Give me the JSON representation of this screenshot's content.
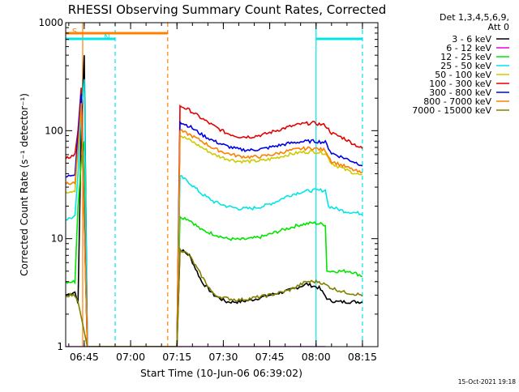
{
  "chart_data": {
    "type": "line",
    "title": "RHESSI Observing Summary Count Rates, Corrected",
    "xlabel": "Start Time (10-Jun-06 06:39:02)",
    "ylabel": "Corrected Count Rate (s⁻¹ detector⁻¹)",
    "x_ticks": [
      "06:45",
      "07:00",
      "07:15",
      "07:30",
      "07:45",
      "08:00",
      "08:15"
    ],
    "x_tick_minutes": [
      6,
      21,
      36,
      51,
      66,
      81,
      96
    ],
    "xlim_minutes": [
      0,
      101
    ],
    "y_scale": "log",
    "ylim": [
      1,
      1000
    ],
    "y_ticks": [
      {
        "label": "1",
        "value": 1
      },
      {
        "label": "10",
        "value": 10
      },
      {
        "label": "100",
        "value": 100
      },
      {
        "label": "1000",
        "value": 1000
      }
    ],
    "legend_header": [
      "Det 1,3,4,5,6,9,",
      "Att 0"
    ],
    "legend_placement": "right",
    "series": [
      {
        "name": "3 - 6 keV",
        "color": "#000000",
        "points": [
          [
            0,
            3
          ],
          [
            3,
            3.2
          ],
          [
            4,
            2.5
          ],
          [
            5,
            100
          ],
          [
            6,
            500
          ],
          [
            7,
            1
          ],
          [
            36,
            1
          ],
          [
            37,
            8
          ],
          [
            40,
            7
          ],
          [
            44,
            4
          ],
          [
            48,
            3
          ],
          [
            52,
            2.6
          ],
          [
            56,
            2.6
          ],
          [
            60,
            2.7
          ],
          [
            66,
            3
          ],
          [
            72,
            3.3
          ],
          [
            78,
            3.8
          ],
          [
            82,
            3.5
          ],
          [
            85,
            2.7
          ],
          [
            88,
            2.6
          ],
          [
            93,
            2.6
          ],
          [
            96,
            2.6
          ]
        ]
      },
      {
        "name": "6 - 12 keV",
        "color": "#e600e6",
        "points": [
          [
            0,
            1
          ],
          [
            5,
            1
          ],
          [
            82,
            1
          ],
          [
            84,
            1
          ]
        ]
      },
      {
        "name": "12 - 25 keV",
        "color": "#00e600",
        "points": [
          [
            0,
            4
          ],
          [
            3,
            4
          ],
          [
            4,
            20
          ],
          [
            5,
            50
          ],
          [
            6,
            80
          ],
          [
            7,
            1
          ],
          [
            36,
            1
          ],
          [
            37,
            16
          ],
          [
            40,
            15
          ],
          [
            44,
            12
          ],
          [
            48,
            11
          ],
          [
            52,
            10
          ],
          [
            56,
            9.8
          ],
          [
            60,
            10
          ],
          [
            64,
            10.5
          ],
          [
            68,
            11.5
          ],
          [
            72,
            12.5
          ],
          [
            76,
            13.5
          ],
          [
            80,
            14
          ],
          [
            84,
            13.5
          ],
          [
            84.5,
            5
          ],
          [
            88,
            5
          ],
          [
            92,
            5
          ],
          [
            96,
            4.5
          ]
        ]
      },
      {
        "name": "25 - 50 keV",
        "color": "#00e6e6",
        "points": [
          [
            0,
            15
          ],
          [
            3,
            16
          ],
          [
            4,
            40
          ],
          [
            5,
            150
          ],
          [
            6,
            300
          ],
          [
            7,
            1
          ],
          [
            36,
            1
          ],
          [
            37,
            38
          ],
          [
            40,
            33
          ],
          [
            44,
            26
          ],
          [
            48,
            22
          ],
          [
            52,
            20
          ],
          [
            56,
            19
          ],
          [
            60,
            19
          ],
          [
            64,
            20
          ],
          [
            68,
            22
          ],
          [
            72,
            25
          ],
          [
            76,
            27
          ],
          [
            80,
            28
          ],
          [
            84,
            28
          ],
          [
            85,
            20
          ],
          [
            90,
            18
          ],
          [
            96,
            17
          ]
        ]
      },
      {
        "name": "50 - 100 keV",
        "color": "#cccc00",
        "points": [
          [
            0,
            27
          ],
          [
            3,
            28
          ],
          [
            4,
            70
          ],
          [
            5,
            200
          ],
          [
            7,
            1
          ],
          [
            36,
            1
          ],
          [
            37,
            90
          ],
          [
            40,
            82
          ],
          [
            44,
            70
          ],
          [
            48,
            60
          ],
          [
            52,
            55
          ],
          [
            56,
            52
          ],
          [
            60,
            52
          ],
          [
            64,
            53
          ],
          [
            68,
            56
          ],
          [
            72,
            60
          ],
          [
            76,
            63
          ],
          [
            80,
            64
          ],
          [
            84,
            62
          ],
          [
            86,
            50
          ],
          [
            90,
            44
          ],
          [
            96,
            38
          ]
        ]
      },
      {
        "name": "100 - 300 keV",
        "color": "#e60000",
        "points": [
          [
            0,
            55
          ],
          [
            3,
            60
          ],
          [
            4,
            100
          ],
          [
            5,
            250
          ],
          [
            7,
            1
          ],
          [
            36,
            1
          ],
          [
            37,
            170
          ],
          [
            40,
            155
          ],
          [
            44,
            130
          ],
          [
            48,
            110
          ],
          [
            52,
            95
          ],
          [
            56,
            88
          ],
          [
            60,
            88
          ],
          [
            64,
            92
          ],
          [
            68,
            100
          ],
          [
            72,
            108
          ],
          [
            76,
            115
          ],
          [
            80,
            118
          ],
          [
            84,
            112
          ],
          [
            86,
            95
          ],
          [
            90,
            85
          ],
          [
            96,
            68
          ]
        ]
      },
      {
        "name": "300 - 800 keV",
        "color": "#0000e6",
        "points": [
          [
            0,
            37
          ],
          [
            3,
            40
          ],
          [
            4,
            90
          ],
          [
            5,
            220
          ],
          [
            7,
            1
          ],
          [
            36,
            1
          ],
          [
            37,
            120
          ],
          [
            40,
            110
          ],
          [
            44,
            92
          ],
          [
            48,
            80
          ],
          [
            52,
            72
          ],
          [
            56,
            67
          ],
          [
            60,
            66
          ],
          [
            64,
            68
          ],
          [
            68,
            72
          ],
          [
            72,
            76
          ],
          [
            76,
            79
          ],
          [
            80,
            80
          ],
          [
            84,
            78
          ],
          [
            86,
            62
          ],
          [
            90,
            56
          ],
          [
            96,
            48
          ]
        ]
      },
      {
        "name": "800 - 7000 keV",
        "color": "#ff8000",
        "points": [
          [
            0,
            32
          ],
          [
            3,
            33
          ],
          [
            4,
            70
          ],
          [
            5,
            180
          ],
          [
            7,
            1
          ],
          [
            36,
            1
          ],
          [
            37,
            100
          ],
          [
            40,
            92
          ],
          [
            44,
            80
          ],
          [
            48,
            68
          ],
          [
            52,
            62
          ],
          [
            56,
            58
          ],
          [
            60,
            57
          ],
          [
            64,
            58
          ],
          [
            68,
            61
          ],
          [
            72,
            65
          ],
          [
            76,
            68
          ],
          [
            80,
            69
          ],
          [
            84,
            66
          ],
          [
            86,
            52
          ],
          [
            90,
            47
          ],
          [
            96,
            40
          ]
        ]
      },
      {
        "name": "7000 - 15000 keV",
        "color": "#808000",
        "points": [
          [
            0,
            3
          ],
          [
            3,
            3
          ],
          [
            4,
            2.6
          ],
          [
            7,
            1
          ],
          [
            36,
            1
          ],
          [
            37,
            8
          ],
          [
            40,
            7
          ],
          [
            44,
            4.5
          ],
          [
            48,
            3
          ],
          [
            52,
            2.8
          ],
          [
            56,
            2.7
          ],
          [
            60,
            2.8
          ],
          [
            66,
            3
          ],
          [
            72,
            3.3
          ],
          [
            78,
            4
          ],
          [
            82,
            4
          ],
          [
            86,
            3.5
          ],
          [
            90,
            3.2
          ],
          [
            96,
            3
          ]
        ]
      }
    ],
    "flag_bars": [
      {
        "label": "S",
        "color": "#ff8000",
        "x_start_min": 0,
        "x_end_min": 33
      },
      {
        "label": "N",
        "color": "#00e6e6",
        "x_start_min": 0,
        "x_end_min": 16
      },
      {
        "label": "",
        "color": "#00e6e6",
        "x_start_min": 81,
        "x_end_min": 96
      }
    ],
    "vertical_markers": [
      {
        "color": "#ff8000",
        "x_min": 5.5,
        "style": "solid"
      },
      {
        "color": "#ff8000",
        "x_min": 33,
        "style": "dashed"
      },
      {
        "color": "#00e6e6",
        "x_min": 16,
        "style": "dashed"
      },
      {
        "color": "#00e6e6",
        "x_min": 81,
        "style": "solid"
      },
      {
        "color": "#00e6e6",
        "x_min": 96,
        "style": "dashed"
      }
    ]
  },
  "footer_date": "15-Oct-2021 19:18"
}
